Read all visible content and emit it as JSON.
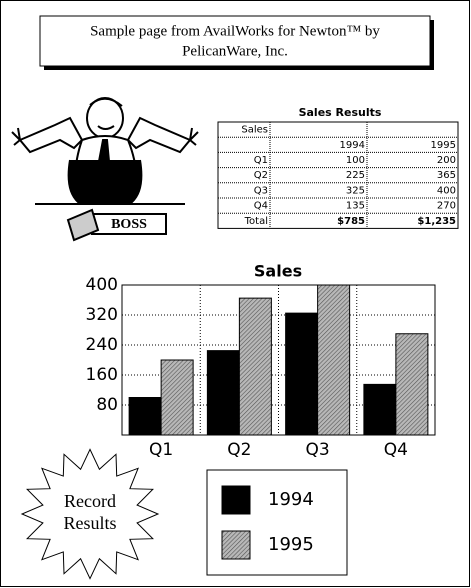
{
  "header": {
    "lines": [
      "Sample page from AvailWorks for Newton™ by",
      "PelicanWare, Inc."
    ]
  },
  "clipart": {
    "label": "BOSS"
  },
  "table": {
    "title": "Sales Results",
    "rows": [
      [
        "Sales",
        null,
        null
      ],
      [
        null,
        "1994",
        "1995"
      ],
      [
        "Q1",
        "100",
        "200"
      ],
      [
        "Q2",
        "225",
        "365"
      ],
      [
        "Q3",
        "325",
        "400"
      ],
      [
        "Q4",
        "135",
        "270"
      ],
      [
        "Total",
        "$785",
        "$1,235"
      ]
    ]
  },
  "chart_data": {
    "type": "bar",
    "title": "Sales",
    "categories": [
      "Q1",
      "Q2",
      "Q3",
      "Q4"
    ],
    "series": [
      {
        "name": "1994",
        "color": "#000000",
        "values": [
          100,
          225,
          325,
          135
        ]
      },
      {
        "name": "1995",
        "color": "hatch",
        "values": [
          200,
          365,
          400,
          270
        ]
      }
    ],
    "ylim": [
      0,
      400
    ],
    "yticks": [
      80,
      160,
      240,
      320,
      400
    ],
    "grid": true
  },
  "starburst": {
    "lines": [
      "Record",
      "Results"
    ]
  }
}
